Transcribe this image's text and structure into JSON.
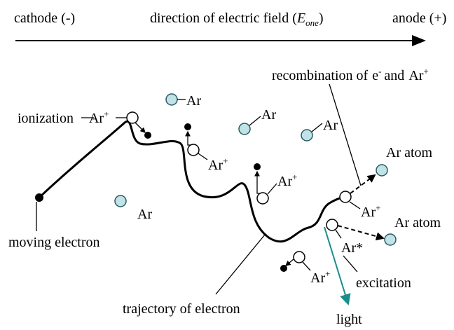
{
  "header": {
    "cathode": "cathode (-)",
    "field": {
      "text": "direction of electric field (",
      "symbol": "E",
      "subscript": "one",
      "close": ")"
    },
    "anode": "anode (+)"
  },
  "recombination": {
    "text": "recombination of",
    "electron": "e",
    "electron_charge": "-",
    "conjunction": "and",
    "ion": "Ar",
    "ion_charge": "+"
  },
  "ionization": {
    "text": "ionization",
    "ion": "Ar",
    "ion_charge": "+"
  },
  "atoms": [
    "Ar",
    "Ar",
    "Ar",
    "Ar"
  ],
  "ions": [
    {
      "text": "Ar",
      "charge": "+"
    },
    {
      "text": "Ar",
      "charge": "+"
    },
    {
      "text": "Ar",
      "charge": "+"
    },
    {
      "text": "Ar",
      "charge": "+"
    }
  ],
  "excited": "Ar*",
  "ar_atoms": [
    "Ar atom",
    "Ar atom"
  ],
  "moving_electron": "moving electron",
  "trajectory": "trajectory of electron",
  "excitation": "excitation",
  "light": "light"
}
